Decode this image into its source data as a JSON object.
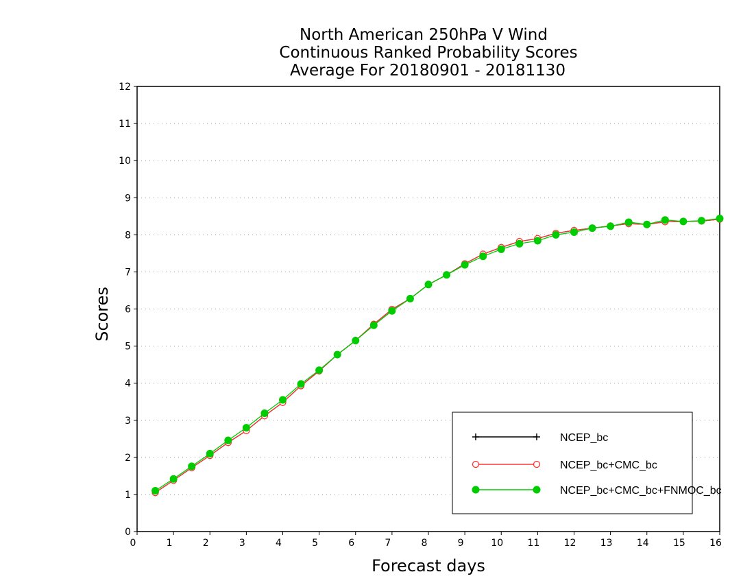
{
  "chart_data": {
    "type": "line",
    "title_lines": [
      "North American 250hPa V Wind",
      "Continuous Ranked Probability Scores",
      "Average For 20180901 - 20181130"
    ],
    "xlabel": "Forecast days",
    "ylabel": "Scores",
    "xlim": [
      0,
      16
    ],
    "ylim": [
      0,
      12
    ],
    "x_ticks": [
      "0",
      "1",
      "2",
      "3",
      "4",
      "5",
      "6",
      "7",
      "8",
      "9",
      "10",
      "11",
      "12",
      "13",
      "14",
      "15",
      "16"
    ],
    "y_ticks": [
      "0",
      "1",
      "2",
      "3",
      "4",
      "5",
      "6",
      "7",
      "8",
      "9",
      "10",
      "11",
      "12"
    ],
    "grid": "horizontal dotted",
    "legend_position": "lower-right",
    "x": [
      0.5,
      1,
      1.5,
      2,
      2.5,
      3,
      3.5,
      4,
      4.5,
      5,
      5.5,
      6,
      6.5,
      7,
      7.5,
      8,
      8.5,
      9,
      9.5,
      10,
      10.5,
      11,
      11.5,
      12,
      12.5,
      13,
      13.5,
      14,
      14.5,
      15,
      15.5,
      16
    ],
    "series": [
      {
        "name": "NCEP_bc",
        "color": "#000000",
        "marker": "plus",
        "values": [
          1.05,
          1.38,
          1.72,
          2.05,
          2.4,
          2.72,
          3.12,
          3.48,
          3.93,
          4.33,
          4.77,
          5.15,
          5.59,
          5.99,
          6.28,
          6.66,
          6.92,
          7.22,
          7.48,
          7.66,
          7.82,
          7.9,
          8.04,
          8.12,
          8.18,
          8.24,
          8.3,
          8.28,
          8.35,
          8.36,
          8.37,
          8.42
        ]
      },
      {
        "name": "NCEP_bc+CMC_bc",
        "color": "#ff3333",
        "marker": "open-circle",
        "values": [
          1.05,
          1.38,
          1.72,
          2.05,
          2.4,
          2.72,
          3.12,
          3.48,
          3.93,
          4.33,
          4.77,
          5.15,
          5.59,
          5.99,
          6.28,
          6.66,
          6.92,
          7.22,
          7.48,
          7.66,
          7.82,
          7.9,
          8.04,
          8.12,
          8.18,
          8.24,
          8.3,
          8.28,
          8.35,
          8.36,
          8.37,
          8.42
        ]
      },
      {
        "name": "NCEP_bc+CMC_bc+FNMOC_bc",
        "color": "#00cc00",
        "marker": "filled-circle",
        "values": [
          1.1,
          1.42,
          1.76,
          2.1,
          2.46,
          2.8,
          3.19,
          3.55,
          3.98,
          4.35,
          4.77,
          5.15,
          5.56,
          5.95,
          6.28,
          6.66,
          6.92,
          7.19,
          7.42,
          7.61,
          7.76,
          7.84,
          8.0,
          8.07,
          8.18,
          8.23,
          8.34,
          8.28,
          8.4,
          8.36,
          8.38,
          8.44
        ]
      }
    ]
  }
}
